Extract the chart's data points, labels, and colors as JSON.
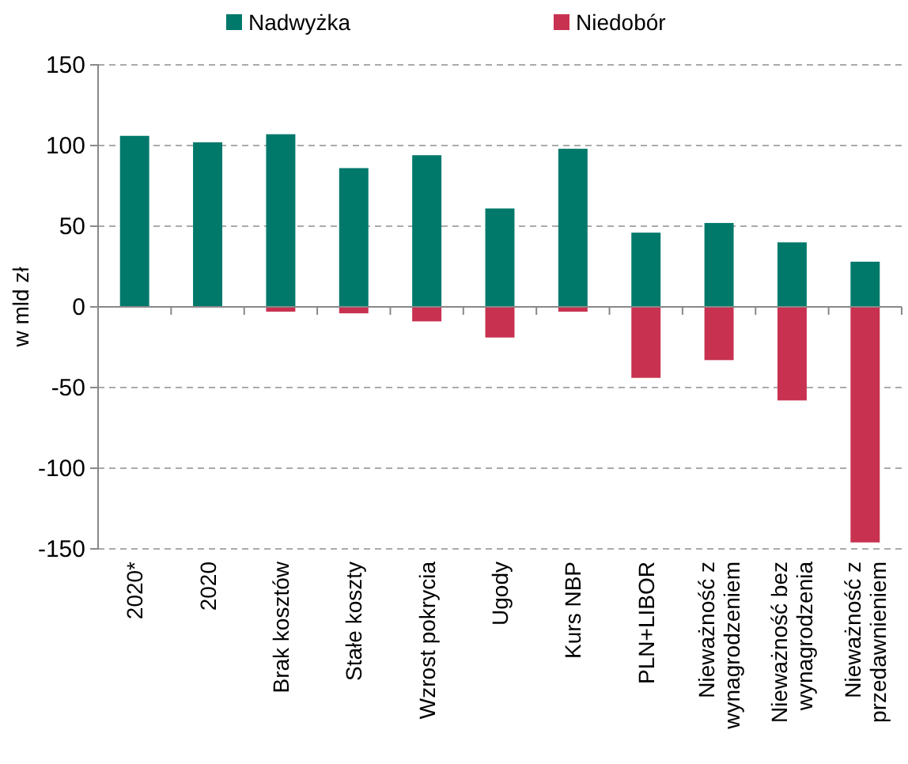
{
  "chart_data": {
    "type": "bar",
    "stacked": true,
    "ylabel": "w mld zł",
    "categories": [
      "2020*",
      "2020",
      "Brak kosztów",
      "Stałe koszty",
      "Wzrost pokrycia",
      "Ugody",
      "Kurs NBP",
      "PLN+LIBOR",
      "Nieważność z\nwynagrodzeniem",
      "Nieważność bez\nwynagrodzenia",
      "Nieważność z\nprzedawnieniem"
    ],
    "series": [
      {
        "name": "Nadwyżka",
        "color": "#00796b",
        "values": [
          106,
          102,
          107,
          86,
          94,
          61,
          98,
          46,
          52,
          40,
          28
        ]
      },
      {
        "name": "Niedobór",
        "color": "#c83250",
        "values": [
          0,
          0,
          -3,
          -4,
          -9,
          -19,
          -3,
          -44,
          -33,
          -58,
          -146
        ]
      }
    ],
    "ylim": [
      -150,
      150
    ],
    "yticks": [
      -150,
      -100,
      -50,
      0,
      50,
      100,
      150
    ],
    "grid": "y",
    "legend": "top"
  }
}
